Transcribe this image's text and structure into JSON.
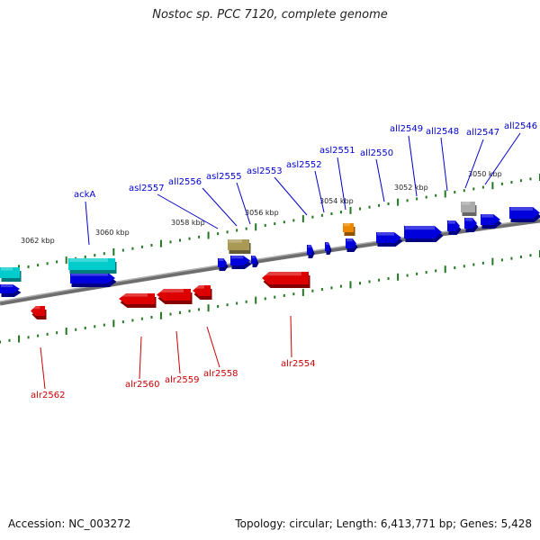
{
  "title": "Nostoc sp. PCC 7120, complete genome",
  "footer": {
    "accession": "Accession: NC_003272",
    "summary": "Topology: circular; Length: 6,413,771 bp; Genes: 5,428"
  },
  "scale_labels": [
    "3062 kbp",
    "3060 kbp",
    "3058 kbp",
    "3056 kbp",
    "3054 kbp",
    "3052 kbp",
    "3050 kbp"
  ],
  "genes_top": [
    "ackA",
    "asl2557",
    "all2556",
    "asl2555",
    "asl2553",
    "asl2552",
    "asl2551",
    "all2550",
    "all2549",
    "all2548",
    "all2547",
    "all2546"
  ],
  "genes_bottom": [
    "alr2562",
    "alr2560",
    "alr2559",
    "alr2558",
    "alr2554"
  ],
  "colors": {
    "forward": "#dd0000",
    "reverse": "#0000dd",
    "rna": "#00cccc",
    "other_olive": "#a89a55",
    "other_orange": "#ee8800",
    "other_gray": "#aaaaaa",
    "backbone": "#808080",
    "ticks": "#227722"
  }
}
